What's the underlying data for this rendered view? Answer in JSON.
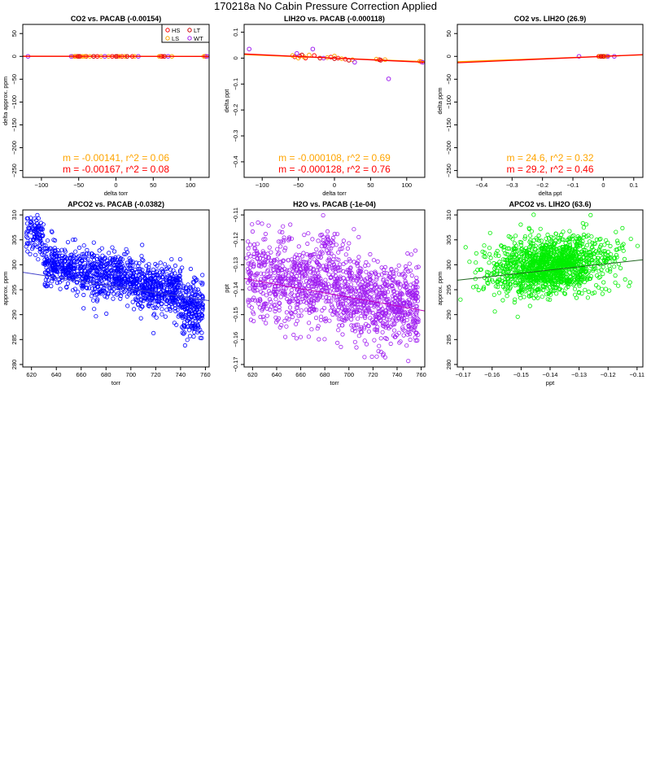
{
  "page_title": "170218a   No Cabin Pressure Correction Applied",
  "colors": {
    "HS": "#ff0000",
    "LS": "#ffa500",
    "LT": "#cc0000",
    "WT": "#a020f0",
    "fit1": "#ffa500",
    "fit2": "#ff0000",
    "apco2": "#0000ff",
    "h2o": "#a020f0",
    "apco2_h2o": "#00ee00"
  },
  "chart_data": [
    {
      "type": "scatter",
      "title": "CO2 vs. PACAB (-0.00154)",
      "xlabel": "delta torr",
      "ylabel": "delta approx. ppm",
      "xlim": [
        -125,
        125
      ],
      "ylim": [
        -265,
        70
      ],
      "xticks": [
        -100,
        -50,
        0,
        50,
        100
      ],
      "yticks": [
        50,
        0,
        -50,
        -100,
        -150,
        -200,
        -250
      ],
      "legend": {
        "position": "top-right",
        "entries": [
          "HS",
          "LT",
          "LS",
          "WT"
        ]
      },
      "fits": [
        {
          "label": "m = -0.00141, r^2 = 0.06",
          "slope": -0.00141,
          "intercept": 0.2,
          "color_key": "fit1"
        },
        {
          "label": "m = -0.00167, r^2 = 0.08",
          "slope": -0.00167,
          "intercept": 0.0,
          "color_key": "fit2"
        }
      ],
      "series": [
        {
          "name": "HS",
          "points": [
            [
              -55,
              0
            ],
            [
              -52,
              0
            ],
            [
              -48,
              0
            ],
            [
              -40,
              0
            ],
            [
              -25,
              0
            ],
            [
              -5,
              0
            ],
            [
              2,
              0
            ],
            [
              8,
              0
            ],
            [
              22,
              0
            ],
            [
              60,
              0
            ],
            [
              62,
              0
            ],
            [
              120,
              0
            ]
          ]
        },
        {
          "name": "LS",
          "points": [
            [
              -58,
              0
            ],
            [
              -54,
              0
            ],
            [
              -45,
              0
            ],
            [
              -42,
              0
            ],
            [
              -35,
              0
            ],
            [
              -20,
              0
            ],
            [
              -10,
              0
            ],
            [
              5,
              0
            ],
            [
              12,
              0
            ],
            [
              25,
              0
            ],
            [
              58,
              0
            ],
            [
              75,
              0
            ],
            [
              118,
              0
            ]
          ]
        },
        {
          "name": "LT",
          "points": [
            [
              -50,
              0
            ],
            [
              -30,
              0
            ],
            [
              0,
              0
            ],
            [
              15,
              0
            ],
            [
              65,
              0
            ]
          ]
        },
        {
          "name": "WT",
          "points": [
            [
              -118,
              0
            ],
            [
              -60,
              0
            ],
            [
              -15,
              0
            ],
            [
              30,
              0
            ],
            [
              70,
              0
            ],
            [
              122,
              0
            ]
          ]
        }
      ]
    },
    {
      "type": "scatter",
      "title": "LIH2O vs. PACAB (-0.000118)",
      "xlabel": "delta torr",
      "ylabel": "delta ppt",
      "xlim": [
        -125,
        125
      ],
      "ylim": [
        -0.46,
        0.13
      ],
      "xticks": [
        -100,
        -50,
        0,
        50,
        100
      ],
      "yticks": [
        0.1,
        0.0,
        -0.1,
        -0.2,
        -0.3,
        -0.4
      ],
      "fits": [
        {
          "label": "m = -0.000108, r^2 = 0.69",
          "slope": -0.000108,
          "intercept": 0.0,
          "color_key": "fit1"
        },
        {
          "label": "m = -0.000128, r^2 = 0.76",
          "slope": -0.000128,
          "intercept": 0.0,
          "color_key": "fit2"
        }
      ],
      "series": [
        {
          "name": "HS",
          "points": [
            [
              -55,
              0.005
            ],
            [
              -48,
              0.008
            ],
            [
              -40,
              0.0
            ],
            [
              -28,
              0.01
            ],
            [
              -5,
              0.004
            ],
            [
              5,
              0.0
            ],
            [
              15,
              -0.004
            ],
            [
              62,
              -0.006
            ],
            [
              120,
              -0.014
            ]
          ]
        },
        {
          "name": "LS",
          "points": [
            [
              -58,
              0.01
            ],
            [
              -50,
              0.0
            ],
            [
              -42,
              0.004
            ],
            [
              -35,
              0.012
            ],
            [
              -10,
              0.002
            ],
            [
              0,
              0.008
            ],
            [
              10,
              -0.002
            ],
            [
              25,
              -0.006
            ],
            [
              58,
              -0.004
            ],
            [
              70,
              -0.006
            ],
            [
              118,
              -0.012
            ]
          ]
        },
        {
          "name": "LT",
          "points": [
            [
              -45,
              0.012
            ],
            [
              -20,
              0.0
            ],
            [
              0,
              -0.002
            ],
            [
              20,
              -0.008
            ],
            [
              64,
              -0.008
            ]
          ]
        },
        {
          "name": "WT",
          "points": [
            [
              -118,
              0.035
            ],
            [
              -52,
              0.018
            ],
            [
              -30,
              0.035
            ],
            [
              -15,
              0.0
            ],
            [
              28,
              -0.016
            ],
            [
              75,
              -0.08
            ],
            [
              122,
              -0.016
            ]
          ]
        }
      ]
    },
    {
      "type": "scatter",
      "title": "CO2 vs. LIH2O (26.9)",
      "xlabel": "delta ppt",
      "ylabel": "delta ppm",
      "xlim": [
        -0.48,
        0.13
      ],
      "ylim": [
        -265,
        70
      ],
      "xticks": [
        -0.4,
        -0.3,
        -0.2,
        -0.1,
        0.0,
        0.1
      ],
      "yticks": [
        50,
        0,
        -50,
        -100,
        -150,
        -200,
        -250
      ],
      "fits": [
        {
          "label": "m = 24.6, r^2 = 0.32",
          "slope": 24.6,
          "intercept": 0.0,
          "color_key": "fit1"
        },
        {
          "label": "m = 29.2, r^2 = 0.46",
          "slope": 29.2,
          "intercept": 0.0,
          "color_key": "fit2"
        }
      ],
      "series": [
        {
          "name": "HS",
          "points": [
            [
              -0.015,
              0
            ],
            [
              -0.005,
              0
            ],
            [
              0.004,
              0
            ],
            [
              0.01,
              0
            ]
          ]
        },
        {
          "name": "LS",
          "points": [
            [
              -0.012,
              0
            ],
            [
              -0.002,
              0
            ],
            [
              0.006,
              0
            ],
            [
              0.012,
              0
            ]
          ]
        },
        {
          "name": "LT",
          "points": [
            [
              -0.008,
              0
            ],
            [
              0.0,
              0
            ]
          ]
        },
        {
          "name": "WT",
          "points": [
            [
              -0.08,
              0
            ],
            [
              0.036,
              0
            ],
            [
              0.015,
              0
            ]
          ]
        }
      ]
    },
    {
      "type": "scatter",
      "title": "APCO2 vs. PACAB (-0.0382)",
      "xlabel": "torr",
      "ylabel": "approx. ppm",
      "xlim": [
        613,
        763
      ],
      "ylim": [
        279.5,
        311
      ],
      "xticks": [
        620,
        640,
        660,
        680,
        700,
        720,
        740,
        760
      ],
      "yticks": [
        310,
        305,
        300,
        295,
        290,
        285,
        280
      ],
      "fit": {
        "slope": -0.0382,
        "x": [
          613,
          763
        ],
        "y": [
          298.5,
          292.8
        ]
      },
      "color_key": "apco2"
    },
    {
      "type": "scatter",
      "title": "H2O vs. PACAB (-1e-04)",
      "xlabel": "torr",
      "ylabel": "ppt",
      "xlim": [
        613,
        763
      ],
      "ylim": [
        -0.171,
        -0.108
      ],
      "xticks": [
        620,
        640,
        660,
        680,
        700,
        720,
        740,
        760
      ],
      "yticks": [
        -0.11,
        -0.12,
        -0.13,
        -0.14,
        -0.15,
        -0.16,
        -0.17
      ],
      "fit": {
        "slope": -0.0001,
        "x": [
          613,
          763
        ],
        "y": [
          -0.1355,
          -0.1485
        ]
      },
      "color_key": "h2o"
    },
    {
      "type": "scatter",
      "title": "APCO2 vs. LIH2O (63.6)",
      "xlabel": "ppt",
      "ylabel": "approx. ppm",
      "xlim": [
        -0.172,
        -0.108
      ],
      "ylim": [
        279.5,
        311
      ],
      "xticks": [
        -0.17,
        -0.16,
        -0.15,
        -0.14,
        -0.13,
        -0.12,
        -0.11
      ],
      "yticks": [
        310,
        305,
        300,
        295,
        290,
        285,
        280
      ],
      "fit": {
        "slope": 63.6,
        "x": [
          -0.172,
          -0.108
        ],
        "y": [
          296.9,
          301.0
        ]
      },
      "color_key": "apco2_h2o"
    }
  ]
}
